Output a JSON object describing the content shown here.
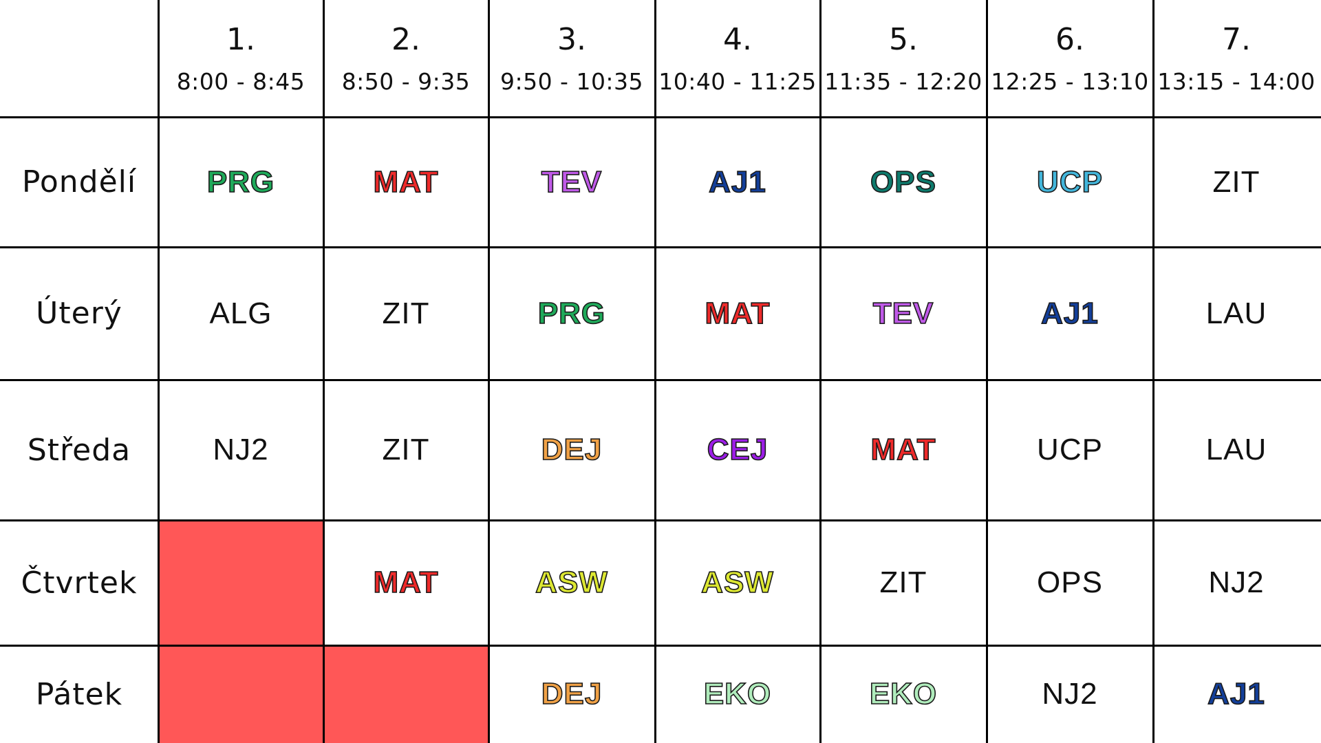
{
  "periods": [
    {
      "number": "1.",
      "time": "8:00 - 8:45"
    },
    {
      "number": "2.",
      "time": "8:50 - 9:35"
    },
    {
      "number": "3.",
      "time": "9:50 - 10:35"
    },
    {
      "number": "4.",
      "time": "10:40 - 11:25"
    },
    {
      "number": "5.",
      "time": "11:35 - 12:20"
    },
    {
      "number": "6.",
      "time": "12:25 - 13:10"
    },
    {
      "number": "7.",
      "time": "13:15 - 14:00"
    }
  ],
  "colors": {
    "PRG": "#1faa5a",
    "MAT": "#ee2a2a",
    "TEV": "#c05ae8",
    "AJ1": "#133f9a",
    "OPS": "#0d7a6c",
    "UCP": "#43b6db",
    "DEJ": "#f0a146",
    "CEJ": "#9c1ee6",
    "ASW": "#dde832",
    "EKO": "#b0ecbc",
    "blocked": "#ff5757"
  },
  "days": [
    {
      "name": "Pondělí",
      "lessons": [
        {
          "subject": "PRG",
          "style": "colored"
        },
        {
          "subject": "MAT",
          "style": "colored"
        },
        {
          "subject": "TEV",
          "style": "colored"
        },
        {
          "subject": "AJ1",
          "style": "colored"
        },
        {
          "subject": "OPS",
          "style": "colored"
        },
        {
          "subject": "UCP",
          "style": "colored"
        },
        {
          "subject": "ZIT",
          "style": "plain"
        }
      ]
    },
    {
      "name": "Úterý",
      "lessons": [
        {
          "subject": "ALG",
          "style": "plain"
        },
        {
          "subject": "ZIT",
          "style": "plain"
        },
        {
          "subject": "PRG",
          "style": "colored"
        },
        {
          "subject": "MAT",
          "style": "colored"
        },
        {
          "subject": "TEV",
          "style": "colored"
        },
        {
          "subject": "AJ1",
          "style": "colored"
        },
        {
          "subject": "LAU",
          "style": "plain"
        }
      ]
    },
    {
      "name": "Středa",
      "lessons": [
        {
          "subject": "NJ2",
          "style": "plain"
        },
        {
          "subject": "ZIT",
          "style": "plain"
        },
        {
          "subject": "DEJ",
          "style": "colored"
        },
        {
          "subject": "CEJ",
          "style": "colored"
        },
        {
          "subject": "MAT",
          "style": "colored"
        },
        {
          "subject": "UCP",
          "style": "plain"
        },
        {
          "subject": "LAU",
          "style": "plain"
        }
      ]
    },
    {
      "name": "Čtvrtek",
      "lessons": [
        {
          "subject": "",
          "style": "blocked"
        },
        {
          "subject": "MAT",
          "style": "colored"
        },
        {
          "subject": "ASW",
          "style": "colored"
        },
        {
          "subject": "ASW",
          "style": "colored"
        },
        {
          "subject": "ZIT",
          "style": "plain"
        },
        {
          "subject": "OPS",
          "style": "plain"
        },
        {
          "subject": "NJ2",
          "style": "plain"
        }
      ]
    },
    {
      "name": "Pátek",
      "lessons": [
        {
          "subject": "",
          "style": "blocked"
        },
        {
          "subject": "",
          "style": "blocked"
        },
        {
          "subject": "DEJ",
          "style": "colored"
        },
        {
          "subject": "EKO",
          "style": "colored"
        },
        {
          "subject": "EKO",
          "style": "colored"
        },
        {
          "subject": "NJ2",
          "style": "plain"
        },
        {
          "subject": "AJ1",
          "style": "colored"
        }
      ]
    }
  ]
}
